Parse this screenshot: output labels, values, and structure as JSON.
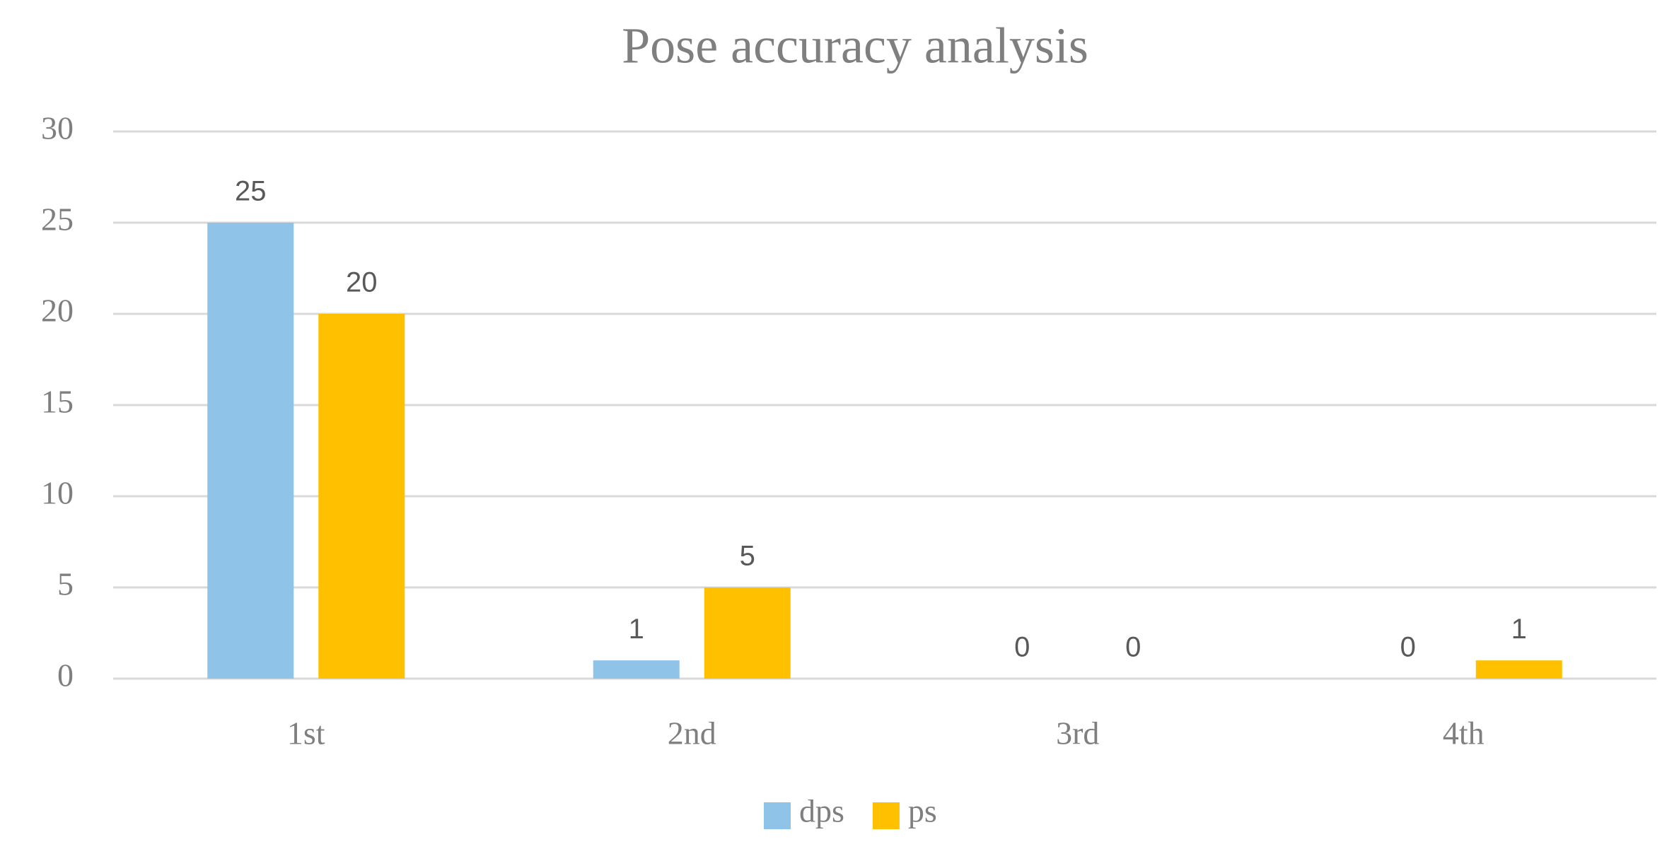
{
  "chart_data": {
    "type": "bar",
    "title": "Pose accuracy analysis",
    "categories": [
      "1st",
      "2nd",
      "3rd",
      "4th"
    ],
    "series": [
      {
        "name": "dps",
        "color": "#8fc3e8",
        "values": [
          25,
          1,
          0,
          0
        ]
      },
      {
        "name": "ps",
        "color": "#ffc000",
        "values": [
          20,
          5,
          0,
          1
        ]
      }
    ],
    "ylim": [
      0,
      30
    ],
    "yticks": [
      0,
      5,
      10,
      15,
      20,
      25,
      30
    ],
    "grid": true,
    "legend": "bottom"
  }
}
